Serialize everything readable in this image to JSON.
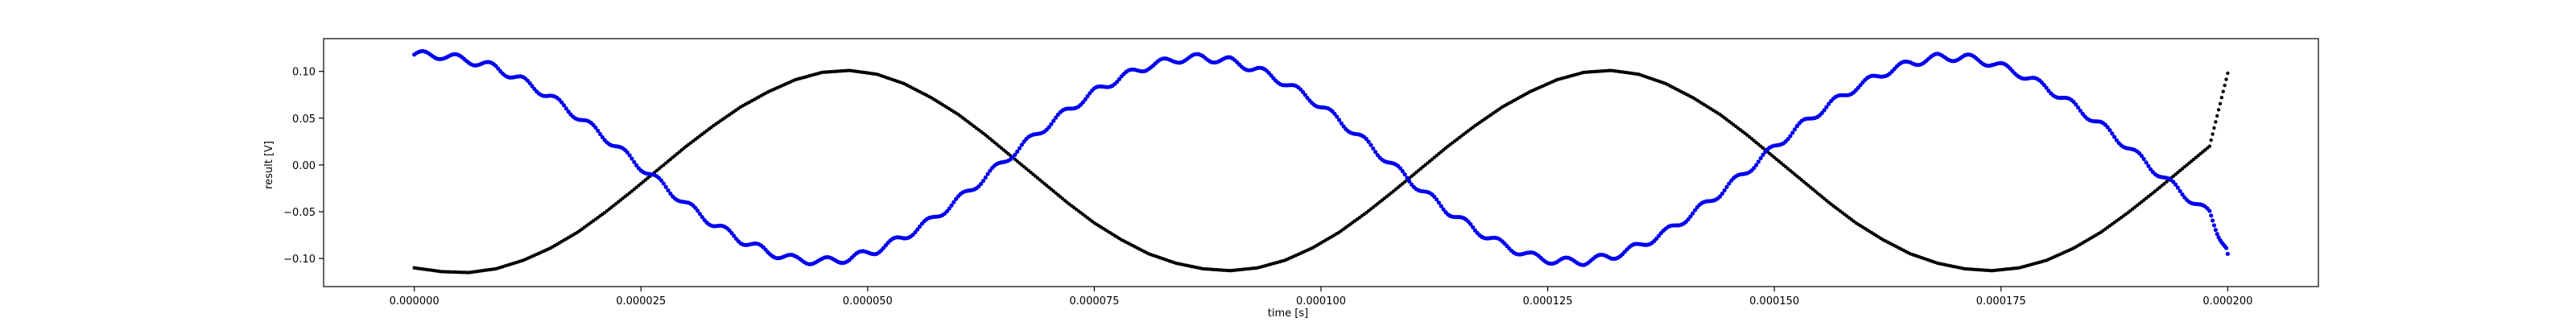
{
  "chart_data": {
    "type": "scatter",
    "title": "",
    "xlabel": "time [s]",
    "ylabel": "result [V]",
    "xlim": [
      -1e-05,
      0.00021
    ],
    "ylim": [
      -0.13,
      0.135
    ],
    "grid": false,
    "x_ticks": [
      0.0,
      2.5e-05,
      5e-05,
      7.5e-05,
      0.0001,
      0.000125,
      0.00015,
      0.000175,
      0.0002
    ],
    "x_tick_labels": [
      "0.000000",
      "0.000025",
      "0.000050",
      "0.000075",
      "0.000100",
      "0.000125",
      "0.000150",
      "0.000175",
      "0.000200"
    ],
    "y_ticks": [
      -0.1,
      -0.05,
      0.0,
      0.05,
      0.1
    ],
    "y_tick_labels": [
      "−0.10",
      "−0.05",
      "0.00",
      "0.05",
      "0.10"
    ],
    "series": [
      {
        "color": "#000000",
        "x": [
          0.0,
          3e-06,
          6e-06,
          9e-06,
          1.2e-05,
          1.5e-05,
          1.8e-05,
          2.1e-05,
          2.4e-05,
          2.7e-05,
          3e-05,
          3.3e-05,
          3.6e-05,
          3.9e-05,
          4.2e-05,
          4.5e-05,
          4.8e-05,
          5.1e-05,
          5.4e-05,
          5.7e-05,
          6e-05,
          6.3e-05,
          6.6e-05,
          6.9e-05,
          7.2e-05,
          7.5e-05,
          7.8e-05,
          8.1e-05,
          8.4e-05,
          8.7e-05,
          9e-05,
          9.3e-05,
          9.6e-05,
          9.9e-05,
          0.000102,
          0.000105,
          0.000108,
          0.000111,
          0.000114,
          0.000117,
          0.00012,
          0.000123,
          0.000126,
          0.000129,
          0.000132,
          0.000135,
          0.000138,
          0.000141,
          0.000144,
          0.000147,
          0.00015,
          0.000153,
          0.000156,
          0.000159,
          0.000162,
          0.000165,
          0.000168,
          0.000171,
          0.000174,
          0.000177,
          0.00018,
          0.000183,
          0.000186,
          0.000189,
          0.000192,
          0.000195,
          0.000198,
          0.0002
        ],
        "y": [
          -0.11,
          -0.114,
          -0.115,
          -0.111,
          -0.102,
          -0.089,
          -0.072,
          -0.051,
          -0.028,
          -0.004,
          0.02,
          0.042,
          0.062,
          0.078,
          0.091,
          0.099,
          0.101,
          0.097,
          0.087,
          0.072,
          0.054,
          0.032,
          0.008,
          -0.016,
          -0.04,
          -0.062,
          -0.08,
          -0.095,
          -0.105,
          -0.111,
          -0.113,
          -0.11,
          -0.102,
          -0.089,
          -0.072,
          -0.051,
          -0.028,
          -0.004,
          0.02,
          0.042,
          0.062,
          0.078,
          0.091,
          0.099,
          0.101,
          0.097,
          0.087,
          0.072,
          0.054,
          0.032,
          0.008,
          -0.016,
          -0.04,
          -0.062,
          -0.08,
          -0.095,
          -0.105,
          -0.111,
          -0.113,
          -0.11,
          -0.102,
          -0.089,
          -0.072,
          -0.051,
          -0.028,
          -0.004,
          0.02,
          0.098
        ]
      },
      {
        "color": "#0000ee",
        "x": [
          0.0,
          3e-06,
          6e-06,
          9e-06,
          1.2e-05,
          1.5e-05,
          1.8e-05,
          2.1e-05,
          2.4e-05,
          2.7e-05,
          3e-05,
          3.3e-05,
          3.6e-05,
          3.9e-05,
          4.2e-05,
          4.5e-05,
          4.8e-05,
          5.1e-05,
          5.4e-05,
          5.7e-05,
          6e-05,
          6.3e-05,
          6.6e-05,
          6.9e-05,
          7.2e-05,
          7.5e-05,
          7.8e-05,
          8.1e-05,
          8.4e-05,
          8.7e-05,
          9e-05,
          9.3e-05,
          9.6e-05,
          9.9e-05,
          0.000102,
          0.000105,
          0.000108,
          0.000111,
          0.000114,
          0.000117,
          0.00012,
          0.000123,
          0.000126,
          0.000129,
          0.000132,
          0.000135,
          0.000138,
          0.000141,
          0.000144,
          0.000147,
          0.00015,
          0.000153,
          0.000156,
          0.000159,
          0.000162,
          0.000165,
          0.000168,
          0.000171,
          0.000174,
          0.000177,
          0.00018,
          0.000183,
          0.000186,
          0.000189,
          0.000192,
          0.000195,
          0.000198,
          0.0002
        ],
        "y": [
          0.118,
          0.117,
          0.112,
          0.104,
          0.09,
          0.073,
          0.052,
          0.03,
          0.006,
          -0.018,
          -0.042,
          -0.063,
          -0.08,
          -0.093,
          -0.101,
          -0.103,
          -0.1,
          -0.091,
          -0.077,
          -0.059,
          -0.037,
          -0.013,
          0.012,
          0.036,
          0.058,
          0.078,
          0.094,
          0.106,
          0.113,
          0.115,
          0.111,
          0.102,
          0.088,
          0.07,
          0.048,
          0.024,
          -0.001,
          -0.026,
          -0.049,
          -0.069,
          -0.085,
          -0.097,
          -0.103,
          -0.103,
          -0.098,
          -0.087,
          -0.072,
          -0.052,
          -0.03,
          -0.006,
          0.019,
          0.043,
          0.064,
          0.083,
          0.098,
          0.109,
          0.115,
          0.115,
          0.109,
          0.098,
          0.083,
          0.064,
          0.043,
          0.019,
          -0.006,
          -0.03,
          -0.052,
          -0.095
        ]
      }
    ]
  }
}
